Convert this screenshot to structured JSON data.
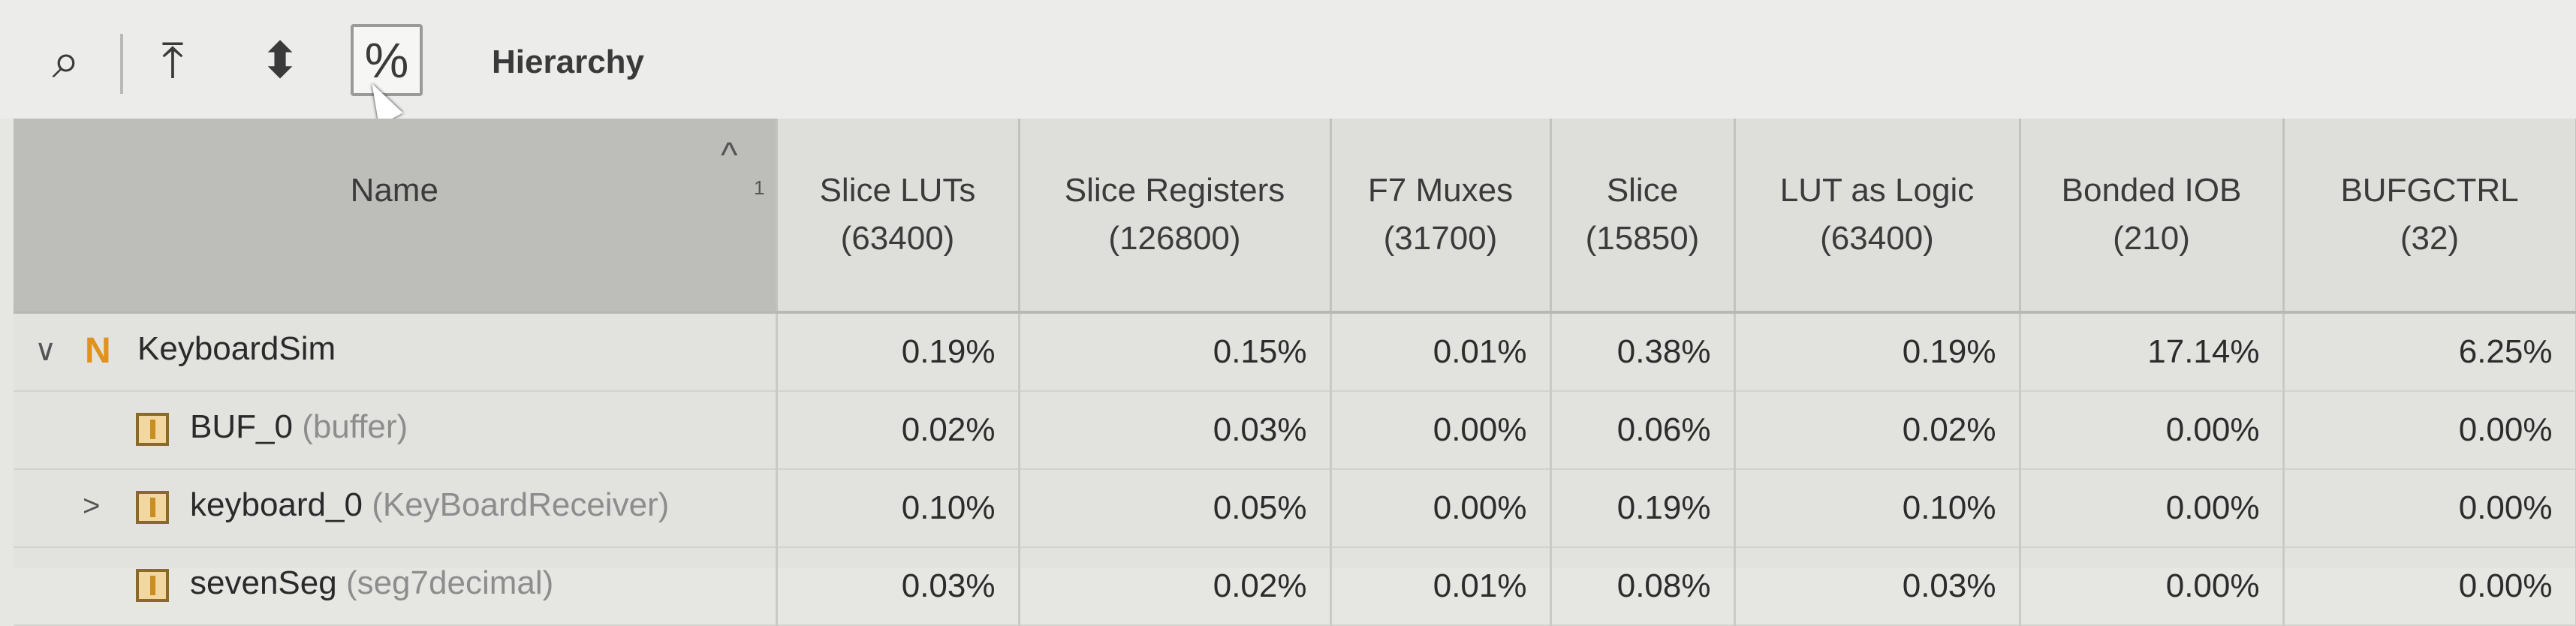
{
  "toolbar": {
    "search_icon": "⌕",
    "collapse_icon": "⤒",
    "expand_icon": "⬍",
    "percent_icon": "%",
    "title": "Hierarchy"
  },
  "table": {
    "name_header": "Name",
    "sort_caret": "^",
    "sort_index": "1",
    "columns": [
      "Slice LUTs\n(63400)",
      "Slice Registers\n(126800)",
      "F7 Muxes\n(31700)",
      "Slice\n(15850)",
      "LUT as Logic\n(63400)",
      "Bonded IOB\n(210)",
      "BUFGCTRL\n(32)"
    ],
    "rows": [
      {
        "name": "KeyboardSim",
        "type": "",
        "expander": "∨",
        "icon": "N",
        "values": [
          "0.19%",
          "0.15%",
          "0.01%",
          "0.38%",
          "0.19%",
          "17.14%",
          "6.25%"
        ]
      },
      {
        "name": "BUF_0",
        "type": "(buffer)",
        "expander": "",
        "icon": "instance",
        "values": [
          "0.02%",
          "0.03%",
          "0.00%",
          "0.06%",
          "0.02%",
          "0.00%",
          "0.00%"
        ]
      },
      {
        "name": "keyboard_0",
        "type": "(KeyBoardReceiver)",
        "expander": ">",
        "icon": "instance",
        "values": [
          "0.10%",
          "0.05%",
          "0.00%",
          "0.19%",
          "0.10%",
          "0.00%",
          "0.00%"
        ]
      },
      {
        "name": "sevenSeg",
        "type": "(seg7decimal)",
        "expander": "",
        "icon": "instance",
        "values": [
          "0.03%",
          "0.02%",
          "0.01%",
          "0.08%",
          "0.03%",
          "0.00%",
          "0.00%"
        ]
      }
    ]
  }
}
